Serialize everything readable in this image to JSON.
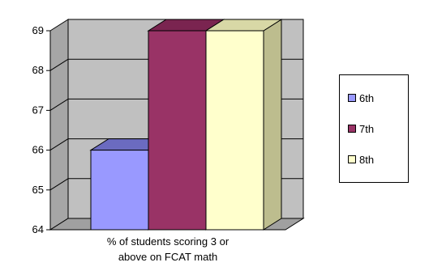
{
  "chart_data": {
    "type": "bar",
    "categories": [
      "% of students scoring 3 or above on FCAT math"
    ],
    "category_lines": [
      "% of students scoring 3 or",
      "above on FCAT math"
    ],
    "series": [
      {
        "name": "6th",
        "values": [
          66
        ],
        "color": "#9999ff",
        "top_color": "#6b6bc0",
        "side_color": "#5c5ca8"
      },
      {
        "name": "7th",
        "values": [
          69
        ],
        "color": "#993366",
        "top_color": "#7a2450",
        "side_color": "#5e1a3d"
      },
      {
        "name": "8th",
        "values": [
          69
        ],
        "color": "#ffffcc",
        "top_color": "#d8d8a6",
        "side_color": "#bdbd8e"
      }
    ],
    "ylim": [
      64,
      69
    ],
    "yticks": [
      "64",
      "65",
      "66",
      "67",
      "68",
      "69"
    ],
    "grid": true,
    "legend_position": "right",
    "wall_color": "#c0c0c0",
    "floor_color": "#a0a0a0",
    "title": "",
    "xlabel": "",
    "ylabel": ""
  }
}
